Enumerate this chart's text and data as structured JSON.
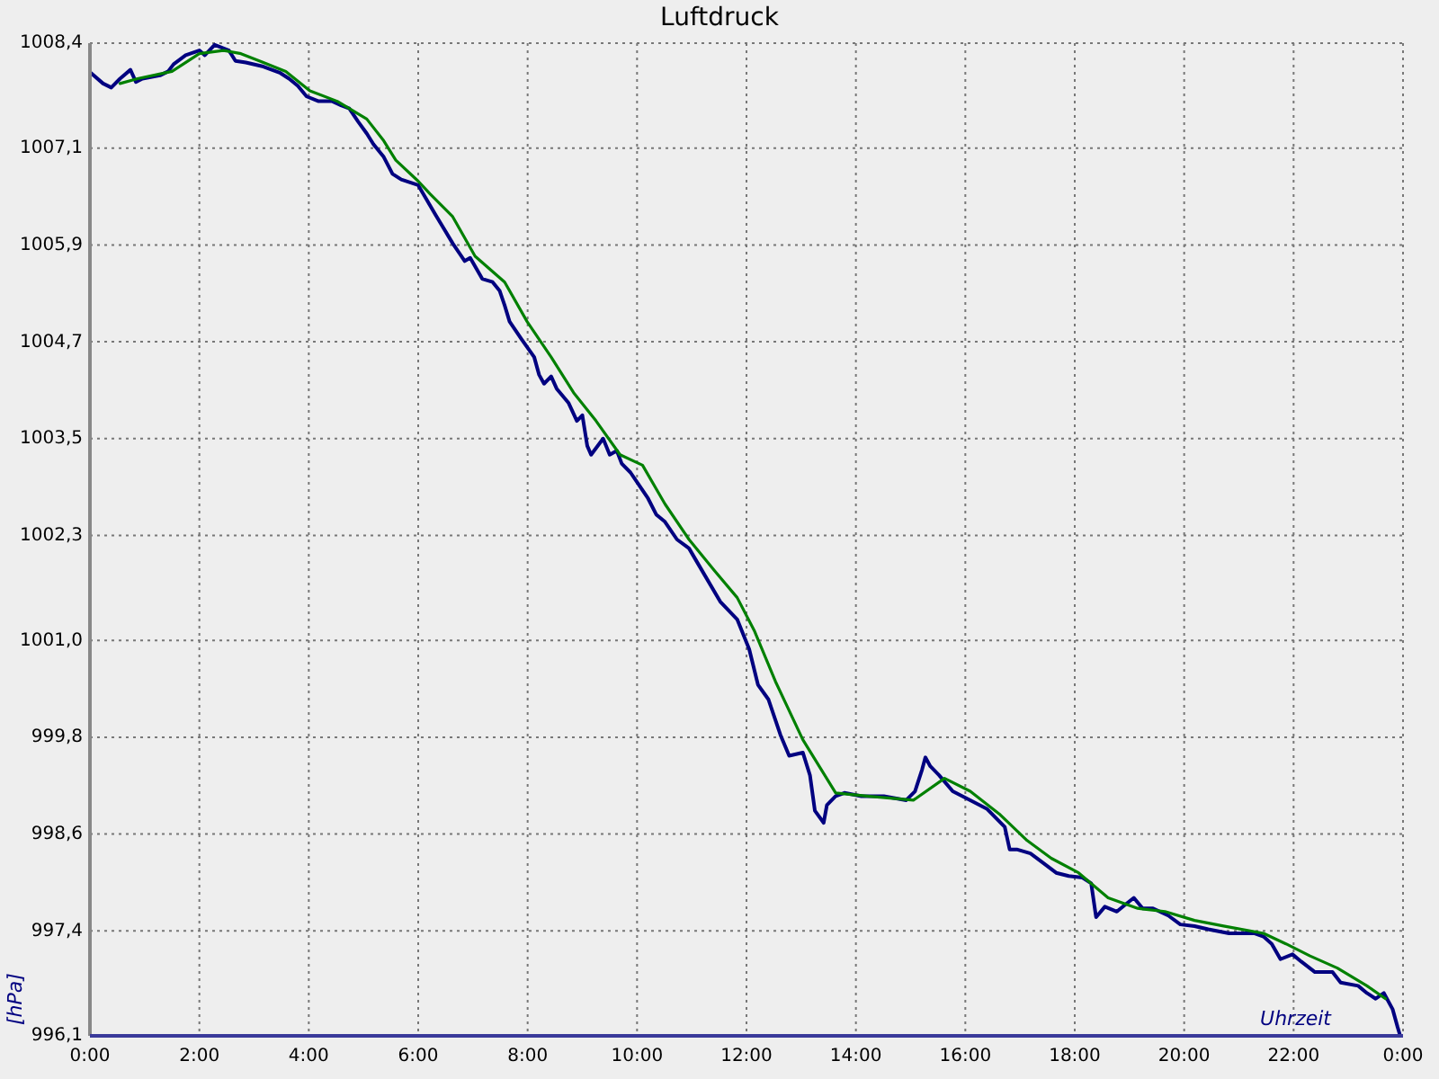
{
  "chart_data": {
    "type": "line",
    "title": "Luftdruck",
    "xlabel": "Uhrzeit",
    "ylabel": "[hPa]",
    "xlim": [
      0,
      24
    ],
    "xticks": [
      {
        "value": 0,
        "label": "0:00"
      },
      {
        "value": 2,
        "label": "2:00"
      },
      {
        "value": 4,
        "label": "4:00"
      },
      {
        "value": 6,
        "label": "6:00"
      },
      {
        "value": 8,
        "label": "8:00"
      },
      {
        "value": 10,
        "label": "10:00"
      },
      {
        "value": 12,
        "label": "12:00"
      },
      {
        "value": 14,
        "label": "14:00"
      },
      {
        "value": 16,
        "label": "16:00"
      },
      {
        "value": 18,
        "label": "18:00"
      },
      {
        "value": 20,
        "label": "20:00"
      },
      {
        "value": 22,
        "label": "22:00"
      },
      {
        "value": 24,
        "label": "0:00"
      }
    ],
    "ylim": [
      996.1,
      1008.4
    ],
    "yticks": [
      {
        "value": 996.1,
        "label": "996,1"
      },
      {
        "value": 997.4,
        "label": "997,4"
      },
      {
        "value": 998.6,
        "label": "998,6"
      },
      {
        "value": 999.8,
        "label": "999,8"
      },
      {
        "value": 1001.0,
        "label": "1001,0"
      },
      {
        "value": 1002.3,
        "label": "1002,3"
      },
      {
        "value": 1003.5,
        "label": "1003,5"
      },
      {
        "value": 1004.7,
        "label": "1004,7"
      },
      {
        "value": 1005.9,
        "label": "1005,9"
      },
      {
        "value": 1007.1,
        "label": "1007,1"
      },
      {
        "value": 1008.4,
        "label": "1008,4"
      }
    ],
    "grid": true,
    "marker": "none",
    "line_style": "solid",
    "series": [
      {
        "color": "#000080",
        "x": [
          0.02,
          0.24,
          0.39,
          0.55,
          0.74,
          0.84,
          0.96,
          1.28,
          1.43,
          1.53,
          1.75,
          2.0,
          2.1,
          2.28,
          2.54,
          2.66,
          2.85,
          3.17,
          3.48,
          3.64,
          3.8,
          3.96,
          4.18,
          4.43,
          4.59,
          4.74,
          4.9,
          5.06,
          5.18,
          5.37,
          5.53,
          5.69,
          6.0,
          6.32,
          6.63,
          6.85,
          6.95,
          7.17,
          7.36,
          7.49,
          7.58,
          7.67,
          7.89,
          8.12,
          8.21,
          8.3,
          8.43,
          8.53,
          8.75,
          8.9,
          9.0,
          9.09,
          9.16,
          9.38,
          9.5,
          9.63,
          9.72,
          9.88,
          10.01,
          10.2,
          10.35,
          10.51,
          10.73,
          10.95,
          11.14,
          11.52,
          11.83,
          12.05,
          12.21,
          12.4,
          12.62,
          12.78,
          13.03,
          13.16,
          13.25,
          13.41,
          13.47,
          13.63,
          13.79,
          14.1,
          14.51,
          14.92,
          15.08,
          15.21,
          15.27,
          15.36,
          15.52,
          15.77,
          16.09,
          16.4,
          16.72,
          16.81,
          16.94,
          17.19,
          17.41,
          17.66,
          17.89,
          18.14,
          18.3,
          18.39,
          18.55,
          18.77,
          18.93,
          19.08,
          19.24,
          19.43,
          19.71,
          19.93,
          20.19,
          20.44,
          20.82,
          21.29,
          21.45,
          21.6,
          21.76,
          21.98,
          22.14,
          22.39,
          22.71,
          22.86,
          23.18,
          23.34,
          23.5,
          23.65,
          23.81,
          23.9,
          23.94
        ],
        "values": [
          1008.03,
          1007.9,
          1007.85,
          1007.96,
          1008.07,
          1007.92,
          1007.96,
          1008.0,
          1008.05,
          1008.14,
          1008.25,
          1008.31,
          1008.25,
          1008.38,
          1008.31,
          1008.18,
          1008.16,
          1008.11,
          1008.03,
          1007.96,
          1007.87,
          1007.74,
          1007.68,
          1007.68,
          1007.63,
          1007.59,
          1007.43,
          1007.28,
          1007.15,
          1006.99,
          1006.78,
          1006.71,
          1006.64,
          1006.27,
          1005.92,
          1005.7,
          1005.74,
          1005.48,
          1005.44,
          1005.33,
          1005.15,
          1004.95,
          1004.73,
          1004.51,
          1004.29,
          1004.18,
          1004.27,
          1004.12,
          1003.94,
          1003.72,
          1003.79,
          1003.41,
          1003.3,
          1003.5,
          1003.3,
          1003.35,
          1003.19,
          1003.08,
          1002.95,
          1002.76,
          1002.56,
          1002.47,
          1002.25,
          1002.14,
          1001.92,
          1001.48,
          1001.26,
          1000.89,
          1000.45,
          1000.27,
          999.83,
          999.57,
          999.61,
          999.33,
          998.89,
          998.74,
          998.96,
          999.07,
          999.11,
          999.07,
          999.07,
          999.02,
          999.13,
          999.4,
          999.55,
          999.44,
          999.33,
          999.13,
          999.02,
          998.91,
          998.69,
          998.41,
          998.41,
          998.36,
          998.25,
          998.12,
          998.08,
          998.06,
          997.99,
          997.57,
          997.7,
          997.64,
          997.73,
          997.81,
          997.68,
          997.68,
          997.59,
          997.48,
          997.46,
          997.42,
          997.37,
          997.37,
          997.33,
          997.24,
          997.05,
          997.11,
          997.02,
          996.89,
          996.89,
          996.76,
          996.72,
          996.63,
          996.56,
          996.63,
          996.43,
          996.21,
          996.12
        ]
      },
      {
        "color": "#008000",
        "x": [
          0.55,
          0.87,
          1.5,
          2.0,
          2.44,
          2.76,
          3.17,
          3.58,
          4.02,
          4.52,
          5.06,
          5.37,
          5.59,
          6.0,
          6.22,
          6.63,
          7.04,
          7.58,
          7.99,
          8.43,
          8.84,
          9.25,
          9.69,
          10.1,
          10.51,
          10.95,
          11.42,
          11.83,
          12.15,
          12.53,
          13.03,
          13.63,
          14.2,
          15.05,
          15.62,
          16.09,
          16.62,
          17.13,
          17.57,
          18.07,
          18.61,
          19.15,
          19.65,
          20.19,
          20.72,
          21.45,
          21.86,
          22.3,
          22.8,
          23.34,
          23.68
        ],
        "values": [
          1007.9,
          1007.96,
          1008.05,
          1008.27,
          1008.31,
          1008.27,
          1008.16,
          1008.05,
          1007.81,
          1007.68,
          1007.46,
          1007.19,
          1006.95,
          1006.69,
          1006.53,
          1006.25,
          1005.76,
          1005.44,
          1004.95,
          1004.51,
          1004.07,
          1003.72,
          1003.3,
          1003.17,
          1002.69,
          1002.25,
          1001.86,
          1001.53,
          1001.11,
          1000.49,
          999.77,
          999.11,
          999.07,
          999.02,
          999.29,
          999.13,
          998.85,
          998.52,
          998.3,
          998.12,
          997.81,
          997.68,
          997.64,
          997.53,
          997.46,
          997.37,
          997.24,
          997.09,
          996.94,
          996.72,
          996.56
        ]
      }
    ]
  }
}
